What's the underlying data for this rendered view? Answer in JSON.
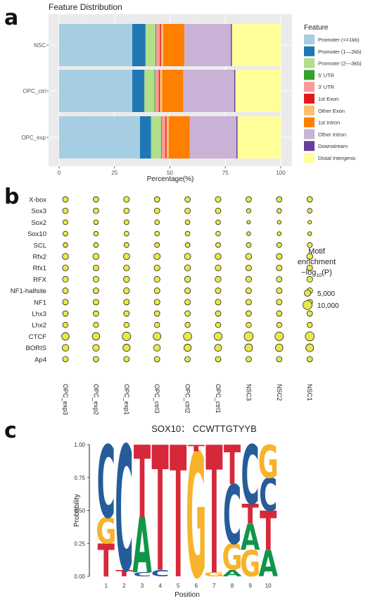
{
  "panel_labels": [
    "a",
    "b",
    "c"
  ],
  "chart_data": [
    {
      "type": "bar",
      "orientation": "horizontal",
      "stacked": true,
      "title": "Feature Distribution",
      "xlabel": "Percentage(%)",
      "ylabel": "",
      "xlim": [
        0,
        100
      ],
      "xticks": [
        "0",
        "25",
        "50",
        "75",
        "100"
      ],
      "categories": [
        "NSC",
        "OPC_ctrl",
        "OPC_exp"
      ],
      "legend_title": "Feature",
      "legend_position": "right",
      "grid": true,
      "series": [
        {
          "name": "Promoter (<=1kb)",
          "color": "#a6cee3",
          "values": [
            33.0,
            33.0,
            36.5
          ]
        },
        {
          "name": "Promoter (1—2kb)",
          "color": "#1f78b4",
          "values": [
            6.0,
            5.5,
            5.0
          ]
        },
        {
          "name": "Promoter (2—3kb)",
          "color": "#b2df8a",
          "values": [
            4.5,
            4.5,
            4.5
          ]
        },
        {
          "name": "5' UTR",
          "color": "#33a02c",
          "values": [
            0.3,
            0.3,
            0.3
          ]
        },
        {
          "name": "3' UTR",
          "color": "#fb9a99",
          "values": [
            1.7,
            1.7,
            1.7
          ]
        },
        {
          "name": "1st Exon",
          "color": "#e31a1c",
          "values": [
            0.5,
            0.5,
            0.5
          ]
        },
        {
          "name": "Other Exon",
          "color": "#fdbf6f",
          "values": [
            1.0,
            1.0,
            1.0
          ]
        },
        {
          "name": "1st Intron",
          "color": "#ff7f00",
          "values": [
            9.5,
            9.5,
            9.5
          ]
        },
        {
          "name": "Other Intron",
          "color": "#cab2d6",
          "values": [
            21.0,
            23.0,
            21.0
          ]
        },
        {
          "name": "Downstream",
          "color": "#6a3d9a",
          "values": [
            0.5,
            0.5,
            0.5
          ]
        },
        {
          "name": "Distal Intergenic",
          "color": "#ffff99",
          "values": [
            22.0,
            20.5,
            19.5
          ]
        }
      ]
    },
    {
      "type": "scatter",
      "subtype": "dot-matrix",
      "title": "",
      "x": [
        "OPC_exp3",
        "OPC_exp2",
        "OPC_exp1",
        "OPC_ctrl3",
        "OPC_ctrl2",
        "OPC_ctrl1",
        "NSC3",
        "NSC2",
        "NSC1"
      ],
      "y": [
        "X-box",
        "Sox3",
        "Sox2",
        "Sox10",
        "SCL",
        "Rfx2",
        "Rfx1",
        "RFX",
        "NF1-halfsite",
        "NF1",
        "Lhx3",
        "Lhx2",
        "CTCF",
        "BORIS",
        "Ap4"
      ],
      "size_legend_title": [
        "Motif",
        "enrichment",
        "−log10(P)"
      ],
      "size_legend_values": [
        5000,
        10000
      ],
      "size_legend_labels": [
        "5,000",
        "10,000"
      ],
      "point_color": "#e8e84a",
      "values": [
        [
          3800,
          3800,
          4200,
          3800,
          3800,
          4000,
          3800,
          3800,
          3800
        ],
        [
          3800,
          3800,
          3800,
          3800,
          3800,
          3800,
          2500,
          2800,
          2800
        ],
        [
          3000,
          2800,
          3000,
          2800,
          2800,
          2800,
          1600,
          1800,
          1700
        ],
        [
          3000,
          2800,
          3000,
          2800,
          2800,
          2800,
          1900,
          2000,
          1900
        ],
        [
          2800,
          2800,
          3000,
          3000,
          3000,
          3000,
          3000,
          3000,
          3200
        ],
        [
          4600,
          4600,
          5000,
          5000,
          5000,
          4600,
          4600,
          4300,
          4600
        ],
        [
          4300,
          4000,
          4300,
          4300,
          4600,
          4300,
          4000,
          4000,
          4000
        ],
        [
          4300,
          4300,
          4600,
          4300,
          4600,
          4300,
          4300,
          4000,
          4300
        ],
        [
          4000,
          4000,
          4300,
          4000,
          4000,
          4000,
          4000,
          4000,
          4000
        ],
        [
          4000,
          4000,
          4000,
          4000,
          4000,
          4000,
          4000,
          4000,
          4000
        ],
        [
          3800,
          3800,
          3800,
          3800,
          3800,
          3800,
          3800,
          3800,
          3800
        ],
        [
          3500,
          3500,
          3500,
          3500,
          3500,
          3500,
          3500,
          3500,
          3500
        ],
        [
          7000,
          7000,
          9000,
          7500,
          8500,
          8000,
          10000,
          9000,
          10000
        ],
        [
          5500,
          5500,
          6500,
          5500,
          6500,
          6000,
          7500,
          7000,
          7500
        ],
        [
          3800,
          3800,
          3800,
          3800,
          3800,
          3800,
          3800,
          3800,
          3800
        ]
      ]
    },
    {
      "type": "sequence-logo",
      "title": "SOX10： CCWTTGTYYB",
      "xlabel": "Position",
      "ylabel": "Probability",
      "ylim": [
        0,
        1
      ],
      "yticks": [
        "0.00",
        "0.25",
        "0.50",
        "0.75",
        "1.00"
      ],
      "positions": [
        "1",
        "2",
        "3",
        "4",
        "5",
        "6",
        "7",
        "8",
        "9",
        "10"
      ],
      "base_colors": {
        "A": "#109648",
        "C": "#255c99",
        "G": "#f7b32b",
        "T": "#d62839"
      },
      "columns": [
        [
          [
            "T",
            0.25
          ],
          [
            "G",
            0.2
          ],
          [
            "C",
            0.55
          ]
        ],
        [
          [
            "T",
            0.05
          ],
          [
            "C",
            0.95
          ]
        ],
        [
          [
            "C",
            0.03
          ],
          [
            "A",
            0.42
          ],
          [
            "T",
            0.55
          ]
        ],
        [
          [
            "C",
            0.05
          ],
          [
            "T",
            0.95
          ]
        ],
        [
          [
            "T",
            1.0
          ]
        ],
        [
          [
            "G",
            0.95
          ],
          [
            "T",
            0.05
          ]
        ],
        [
          [
            "G",
            0.03
          ],
          [
            "T",
            0.97
          ]
        ],
        [
          [
            "A",
            0.05
          ],
          [
            "G",
            0.2
          ],
          [
            "C",
            0.45
          ],
          [
            "T",
            0.3
          ]
        ],
        [
          [
            "G",
            0.2
          ],
          [
            "A",
            0.2
          ],
          [
            "T",
            0.15
          ],
          [
            "C",
            0.45
          ]
        ],
        [
          [
            "A",
            0.2
          ],
          [
            "T",
            0.3
          ],
          [
            "C",
            0.25
          ],
          [
            "G",
            0.25
          ]
        ]
      ]
    }
  ]
}
